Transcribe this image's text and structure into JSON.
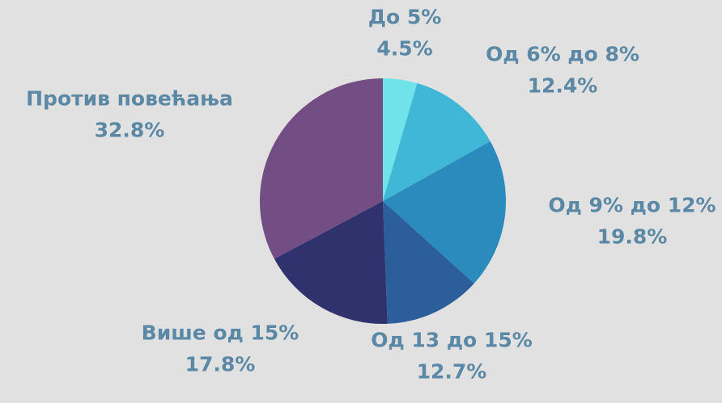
{
  "chart_data": {
    "type": "pie",
    "title": "",
    "start_angle_deg": 0,
    "direction": "clockwise",
    "label_color": "#5b88a5",
    "background": "#e1e1e1",
    "slices": [
      {
        "label": "До 5%",
        "value": 4.5,
        "value_label": "4.5%",
        "color": "#6ee3e8"
      },
      {
        "label": "Од 6% до 8%",
        "value": 12.4,
        "value_label": "12.4%",
        "color": "#41b7d8"
      },
      {
        "label": "Од 9% до 12%",
        "value": 19.8,
        "value_label": "19.8%",
        "color": "#2c8bbd"
      },
      {
        "label": "Од 13 до 15%",
        "value": 12.7,
        "value_label": "12.7%",
        "color": "#2b5e9a"
      },
      {
        "label": "Више од 15%",
        "value": 17.8,
        "value_label": "17.8%",
        "color": "#2f326c"
      },
      {
        "label": "Против повећања",
        "value": 32.8,
        "value_label": "32.8%",
        "color": "#724e85"
      }
    ]
  }
}
